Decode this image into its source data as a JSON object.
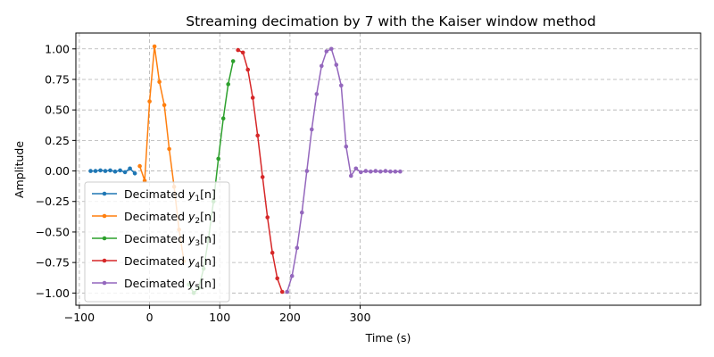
{
  "chart_data": {
    "type": "line",
    "title": "Streaming decimation by 7 with the Kaiser window method",
    "xlabel": "Time (s)",
    "ylabel": "Amplitude",
    "xlim": [
      -105,
      785
    ],
    "ylim": [
      -1.1,
      1.13
    ],
    "xticks": [
      -100,
      0,
      100,
      200,
      300
    ],
    "xtick_labels": [
      "−100",
      "0",
      "100",
      "200",
      "300"
    ],
    "yticks": [
      -1.0,
      -0.75,
      -0.5,
      -0.25,
      0.0,
      0.25,
      0.5,
      0.75,
      1.0
    ],
    "ytick_labels": [
      "−1.00",
      "−0.75",
      "−0.50",
      "−0.25",
      "0.00",
      "0.25",
      "0.50",
      "0.75",
      "1.00"
    ],
    "grid": true,
    "legend_position": "lower-left",
    "series": [
      {
        "name": "Decimated y1[n]",
        "legend_base": "Decimated ",
        "legend_var": "y",
        "legend_sub": "1",
        "legend_tail": "[n]",
        "color": "#1f77b4",
        "x": [
          -84,
          -77,
          -70,
          -63,
          -56,
          -49,
          -42,
          -35,
          -28,
          -21
        ],
        "y": [
          0.0,
          0.0,
          0.005,
          0.0,
          0.005,
          -0.005,
          0.005,
          -0.01,
          0.02,
          -0.02
        ]
      },
      {
        "name": "Decimated y2[n]",
        "legend_base": "Decimated ",
        "legend_var": "y",
        "legend_sub": "2",
        "legend_tail": "[n]",
        "color": "#ff7f0e",
        "x": [
          -14,
          -7,
          0,
          7,
          14,
          21,
          28,
          35,
          42,
          49
        ],
        "y": [
          0.04,
          -0.08,
          0.57,
          1.02,
          0.73,
          0.54,
          0.18,
          -0.13,
          -0.48,
          -0.74
        ]
      },
      {
        "name": "Decimated y3[n]",
        "legend_base": "Decimated ",
        "legend_var": "y",
        "legend_sub": "3",
        "legend_tail": "[n]",
        "color": "#2ca02c",
        "x": [
          56,
          63,
          70,
          77,
          84,
          91,
          98,
          105,
          112,
          119
        ],
        "y": [
          -0.93,
          -1.0,
          -0.96,
          -0.8,
          -0.55,
          -0.25,
          0.1,
          0.43,
          0.71,
          0.9
        ]
      },
      {
        "name": "Decimated y4[n]",
        "legend_base": "Decimated ",
        "legend_var": "y",
        "legend_sub": "4",
        "legend_tail": "[n]",
        "color": "#d62728",
        "x": [
          126,
          133,
          140,
          147,
          154,
          161,
          168,
          175,
          182,
          189
        ],
        "y": [
          0.99,
          0.97,
          0.83,
          0.6,
          0.29,
          -0.05,
          -0.38,
          -0.67,
          -0.88,
          -0.99
        ]
      },
      {
        "name": "Decimated y5[n]",
        "legend_base": "Decimated ",
        "legend_var": "y",
        "legend_sub": "5",
        "legend_tail": "[n]",
        "color": "#9467bd",
        "x": [
          196,
          203,
          210,
          217,
          224,
          231,
          238,
          245,
          252,
          259,
          266,
          273,
          280,
          287,
          294,
          301,
          308,
          315,
          322,
          329,
          336,
          343,
          350,
          357
        ],
        "y": [
          -0.99,
          -0.86,
          -0.63,
          -0.34,
          0.0,
          0.34,
          0.63,
          0.86,
          0.98,
          1.0,
          0.87,
          0.7,
          0.2,
          -0.04,
          0.02,
          -0.01,
          0.0,
          -0.005,
          0.0,
          -0.005,
          0.0,
          -0.005,
          -0.005,
          -0.005
        ]
      }
    ]
  }
}
